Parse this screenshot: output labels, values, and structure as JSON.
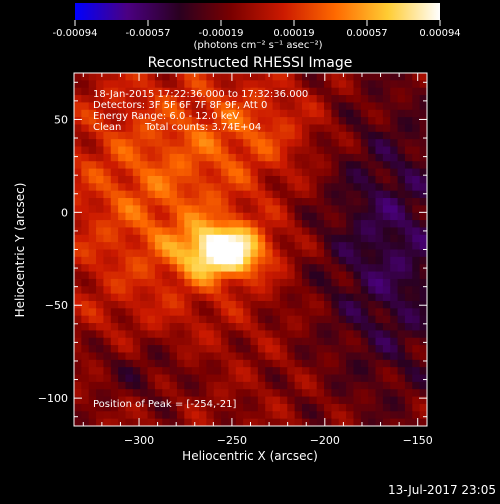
{
  "chart_data": {
    "type": "heatmap",
    "title": "Reconstructed RHESSI Image",
    "xlabel": "Heliocentric X (arcsec)",
    "ylabel": "Heliocentric Y (arcsec)",
    "xlim": [
      -335,
      -145
    ],
    "ylim": [
      -115,
      75
    ],
    "x_ticks": [
      -300,
      -250,
      -200,
      -150
    ],
    "y_ticks": [
      50,
      0,
      -50,
      -100
    ],
    "colorbar": {
      "min": -0.00094,
      "max": 0.00094,
      "ticks": [
        "-0.00094",
        "-0.00057",
        "-0.00019",
        "0.00019",
        "0.00057",
        "0.00094"
      ],
      "unit_label": "(photons cm⁻² s⁻¹ asec⁻²)",
      "colors": [
        "#0000ff",
        "#4b0082",
        "#2a0020",
        "#7a0000",
        "#cc1a00",
        "#ff6a00",
        "#ffcc33",
        "#ffffff"
      ]
    },
    "annotations": {
      "time_range": "18-Jan-2015 17:22:36.000 to 17:32:36.000",
      "detectors": "Detectors: 3F 5F 6F 7F 8F 9F, Att 0",
      "energy_range": "Energy Range: 6.0 - 12.0 keV",
      "clean": "Clean",
      "total_counts": "Total counts: 3.74E+04",
      "peak_position": "Position of Peak = [-254,-21]"
    },
    "peak": {
      "x": -254,
      "y": -21
    },
    "footer_date": "13-Jul-2017 23:05"
  }
}
